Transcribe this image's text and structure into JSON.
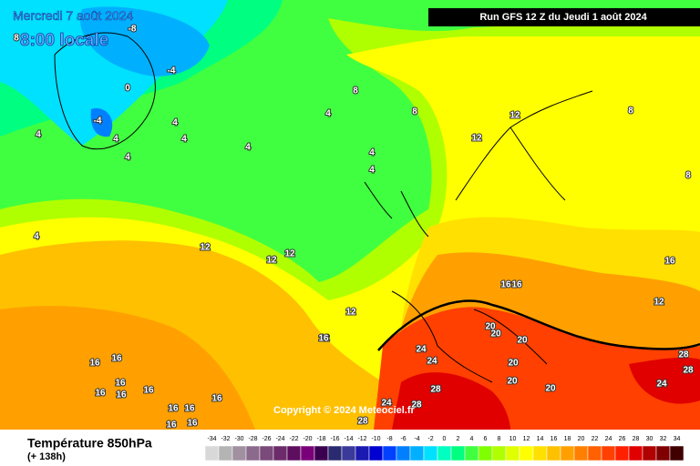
{
  "header": {
    "date": "Mercredi 7 août 2024",
    "time": "8:00 locale",
    "run": "Run GFS 12 Z du Jeudi 1 août 2024"
  },
  "copyright": "Copyright © 2024 Meteociel.fr",
  "footer": {
    "title": "Température 850hPa",
    "lead": "(+ 138h)"
  },
  "scale": {
    "labels": [
      -34,
      -32,
      -30,
      -28,
      -26,
      -24,
      -22,
      -20,
      -18,
      -16,
      -14,
      -12,
      -10,
      -8,
      -6,
      -4,
      -2,
      0,
      2,
      4,
      6,
      8,
      10,
      12,
      14,
      16,
      18,
      20,
      22,
      24,
      26,
      28,
      30,
      32,
      34
    ],
    "colors": [
      "#d8d8d8",
      "#b4b4b4",
      "#a090a0",
      "#8c6a8c",
      "#7a4a7a",
      "#6c2c6c",
      "#5e0e5e",
      "#7a007a",
      "#3c0050",
      "#2a2a70",
      "#3a3a9a",
      "#1a1ab0",
      "#0000d0",
      "#0040ff",
      "#0080ff",
      "#00b0ff",
      "#00e0ff",
      "#00ffc0",
      "#00ff80",
      "#40ff40",
      "#80ff00",
      "#b0ff00",
      "#e0ff00",
      "#ffff00",
      "#ffe000",
      "#ffc000",
      "#ffa000",
      "#ff8000",
      "#ff6000",
      "#ff4000",
      "#ff2000",
      "#e00000",
      "#b00000",
      "#800000",
      "#400000"
    ]
  },
  "contour_labels": [
    -8,
    -4,
    0,
    -4,
    4,
    4,
    8,
    4,
    4,
    4,
    4,
    4,
    4,
    4,
    4,
    8,
    8,
    12,
    12,
    8,
    8,
    12,
    12,
    12,
    12,
    12,
    16,
    16,
    16,
    12,
    20,
    20,
    20,
    20,
    20,
    20,
    24,
    24,
    24,
    28,
    28,
    28,
    28,
    24,
    28,
    16,
    16,
    16,
    16,
    16,
    16,
    16,
    16,
    16,
    16,
    16,
    16
  ]
}
